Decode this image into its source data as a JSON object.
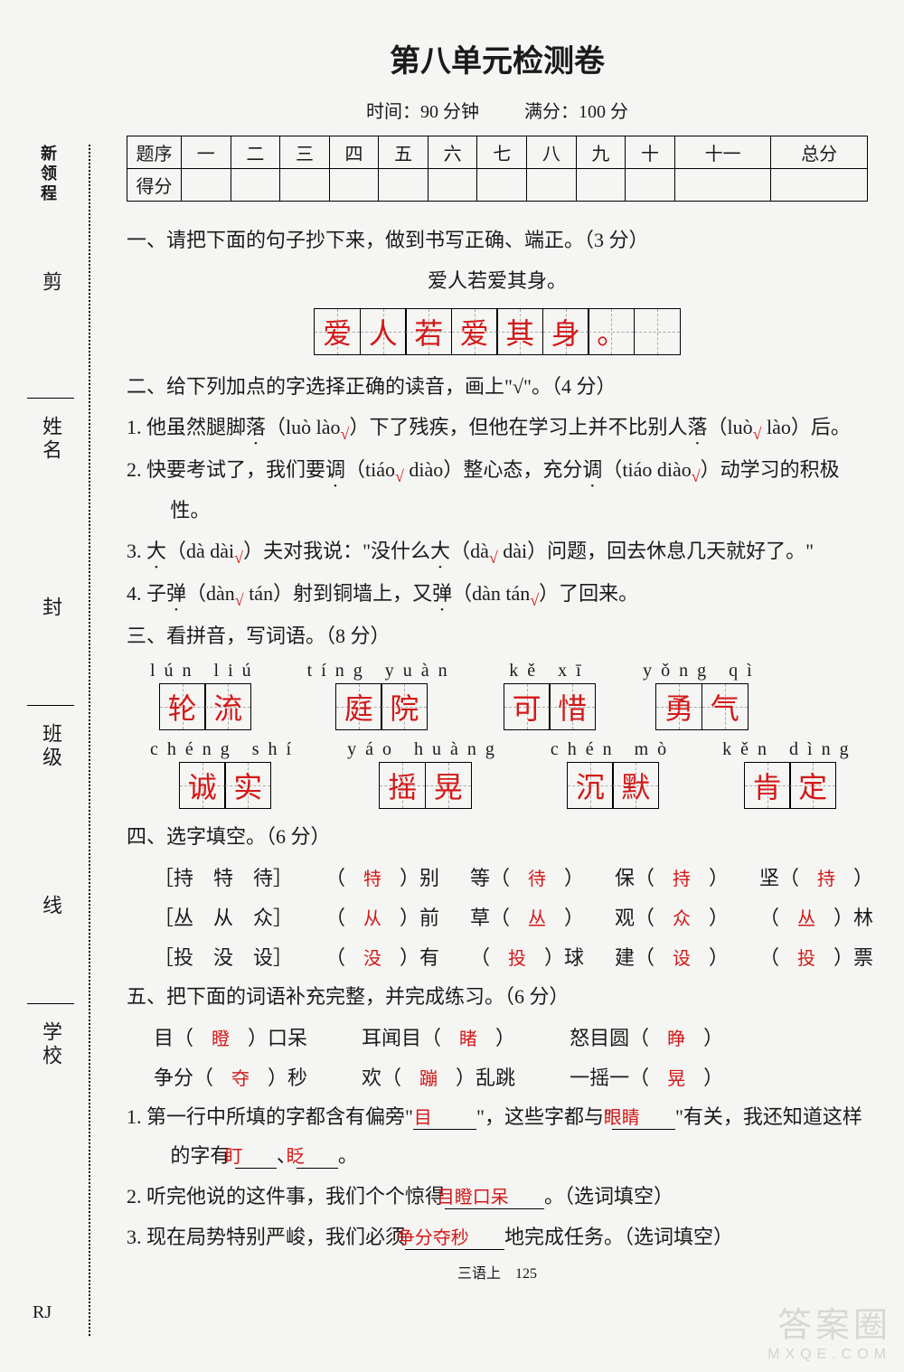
{
  "title": "第八单元检测卷",
  "meta": {
    "time_label": "时间：",
    "time_val": "90 分钟",
    "full_label": "满分：",
    "full_val": "100 分"
  },
  "score_table": {
    "row1_label": "题序",
    "row2_label": "得分",
    "cols": [
      "一",
      "二",
      "三",
      "四",
      "五",
      "六",
      "七",
      "八",
      "九",
      "十",
      "十一",
      "总分"
    ]
  },
  "side": {
    "brand": "新领程",
    "cut": "剪",
    "seal": "封",
    "line": "线",
    "name": "姓名",
    "class": "班级",
    "school": "学校"
  },
  "q1": {
    "heading": "一、请把下面的句子抄下来，做到书写正确、端正。（3 分）",
    "line": "爱人若爱其身。",
    "cells": [
      "爱",
      "人",
      "若",
      "爱",
      "其",
      "身",
      "。",
      ""
    ]
  },
  "q2": {
    "heading": "二、给下列加点的字选择正确的读音，画上\"√\"。（4 分）",
    "items": [
      {
        "pre": "1. 他虽然腿脚",
        "w": "落",
        "a": "（luò",
        "chk": "",
        "b": "  lào",
        "chk2": "√",
        "post": "）下了残疾，但他在学习上并不比别人",
        "w2": "落",
        "c": "（luò",
        "chk3": "√",
        "d": "  lào）后。"
      },
      {
        "pre": "2. 快要考试了，我们要",
        "w": "调",
        "a": "（tiáo",
        "chk": "√",
        "b": "  diào",
        "chk2": "",
        "post": "）整心态，充分",
        "w2": "调",
        "c": "（tiáo  diào",
        "chk3": "√",
        "d": "）动学习的积极性。"
      },
      {
        "pre": "3. ",
        "w": "大",
        "a": "（dà  dài",
        "chk": "√",
        "b": "",
        "chk2": "",
        "post": "）夫对我说：\"没什么",
        "w2": "大",
        "c": "（dà",
        "chk3": "√",
        "d": "  dài）问题，回去休息几天就好了。\""
      },
      {
        "pre": "4. 子",
        "w": "弹",
        "a": "（dàn",
        "chk": "√",
        "b": "  tán",
        "chk2": "",
        "post": "）射到铜墙上，又",
        "w2": "弹",
        "c": "（dàn  tán",
        "chk3": "√",
        "d": "）了回来。"
      }
    ]
  },
  "q3": {
    "heading": "三、看拼音，写词语。（8 分）",
    "items": [
      {
        "py": "lún  liú",
        "c": [
          "轮",
          "流"
        ]
      },
      {
        "py": "tíng yuàn",
        "c": [
          "庭",
          "院"
        ]
      },
      {
        "py": "kě   xī",
        "c": [
          "可",
          "惜"
        ]
      },
      {
        "py": "yǒng  qì",
        "c": [
          "勇",
          "气"
        ]
      },
      {
        "py": "chéng shí",
        "c": [
          "诚",
          "实"
        ]
      },
      {
        "py": "yáo huàng",
        "c": [
          "摇",
          "晃"
        ]
      },
      {
        "py": "chén  mò",
        "c": [
          "沉",
          "默"
        ]
      },
      {
        "py": "kěn  dìng",
        "c": [
          "肯",
          "定"
        ]
      }
    ]
  },
  "q4": {
    "heading": "四、选字填空。（6 分）",
    "rows": [
      {
        "opts": "［持　特　待］",
        "cells": [
          {
            "a": "特",
            "t": "）别"
          },
          {
            "pre": "等（",
            "a": "待",
            "t": "）"
          },
          {
            "pre": "保（",
            "a": "持",
            "t": "）"
          },
          {
            "pre": "坚（",
            "a": "持",
            "t": "）"
          }
        ]
      },
      {
        "opts": "［丛　从　众］",
        "cells": [
          {
            "a": "从",
            "t": "）前"
          },
          {
            "pre": "草（",
            "a": "丛",
            "t": "）"
          },
          {
            "pre": "观（",
            "a": "众",
            "t": "）"
          },
          {
            "pre": "（",
            "a": "丛",
            "t": "）林"
          }
        ]
      },
      {
        "opts": "［投　没　设］",
        "cells": [
          {
            "a": "没",
            "t": "）有"
          },
          {
            "pre": "（",
            "a": "投",
            "t": "）球"
          },
          {
            "pre": "建（",
            "a": "设",
            "t": "）"
          },
          {
            "pre": "（",
            "a": "投",
            "t": "）票"
          }
        ]
      }
    ]
  },
  "q5": {
    "heading": "五、把下面的词语补充完整，并完成练习。（6 分）",
    "idioms_row1": [
      {
        "pre": "目（",
        "a": "瞪",
        "post": "）口呆"
      },
      {
        "pre": "耳闻目（",
        "a": "睹",
        "post": "）"
      },
      {
        "pre": "怒目圆（",
        "a": "睁",
        "post": "）"
      }
    ],
    "idioms_row2": [
      {
        "pre": "争分（",
        "a": "夺",
        "post": "）秒"
      },
      {
        "pre": "欢（",
        "a": "蹦",
        "post": "）乱跳"
      },
      {
        "pre": "一摇一（",
        "a": "晃",
        "post": "）"
      }
    ],
    "sub1_pre": "1. 第一行中所填的字都含有偏旁\"",
    "sub1_a1": "目",
    "sub1_mid": "\"，这些字都与\"",
    "sub1_a2": "眼睛",
    "sub1_mid2": "\"有关，我还知道这样的字有",
    "sub1_a3": "盯",
    "sub1_sep": "、",
    "sub1_a4": "眨",
    "sub1_end": "。",
    "sub2_pre": "2. 听完他说的这件事，我们个个惊得",
    "sub2_a": "目瞪口呆",
    "sub2_end": "。（选词填空）",
    "sub3_pre": "3. 现在局势特别严峻，我们必须",
    "sub3_a": "争分夺秒",
    "sub3_end": "地完成任务。（选词填空）"
  },
  "footer": {
    "rj": "RJ",
    "pg": "三语上　125"
  },
  "watermark": {
    "main": "答案圈",
    "sub": "MXQE.COM"
  }
}
